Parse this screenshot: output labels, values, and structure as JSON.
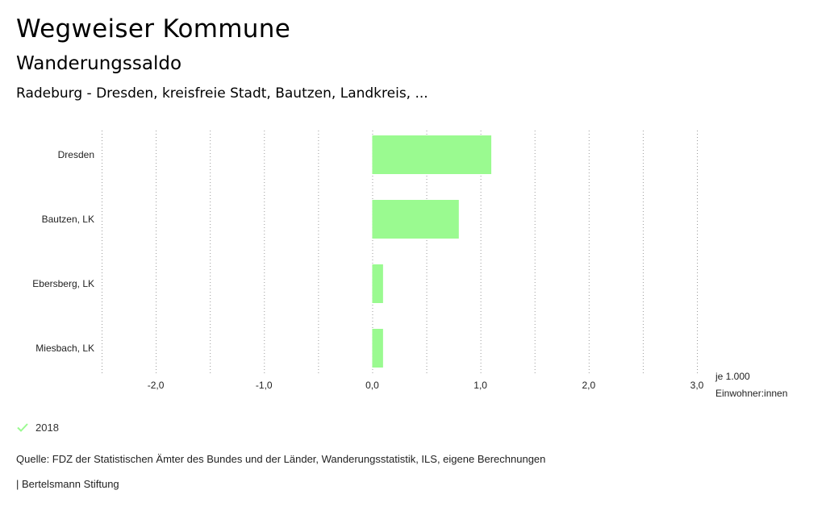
{
  "header": {
    "title": "Wegweiser Kommune",
    "subtitle": "Wanderungssaldo",
    "region": "Radeburg - Dresden, kreisfreie Stadt, Bautzen, Landkreis, ..."
  },
  "chart_data": {
    "type": "bar",
    "orientation": "horizontal",
    "categories": [
      "Dresden",
      "Bautzen, LK",
      "Ebersberg, LK",
      "Miesbach, LK"
    ],
    "series": [
      {
        "name": "2018",
        "values": [
          1.1,
          0.8,
          0.1,
          0.1
        ],
        "color": "#9afa90"
      }
    ],
    "xlim": [
      -2.5,
      3.0
    ],
    "ticks": [
      -2.0,
      -1.0,
      0.0,
      1.0,
      2.0,
      3.0
    ],
    "tick_labels": [
      "-2,0",
      "-1,0",
      "0,0",
      "1,0",
      "2,0",
      "3,0"
    ],
    "minor_ticks": [
      -2.5,
      -1.5,
      -0.5,
      0.5,
      1.5,
      2.5
    ],
    "unit_label": [
      "je 1.000",
      "Einwohner:innen"
    ],
    "grid": true,
    "legend": "bottom-left"
  },
  "legend": {
    "label": "2018",
    "color": "#9afa90"
  },
  "footer": {
    "source": "Quelle: FDZ der Statistischen Ämter des Bundes und der Länder, Wanderungsstatistik, ILS, eigene Berechnungen",
    "credit": "| Bertelsmann Stiftung"
  }
}
